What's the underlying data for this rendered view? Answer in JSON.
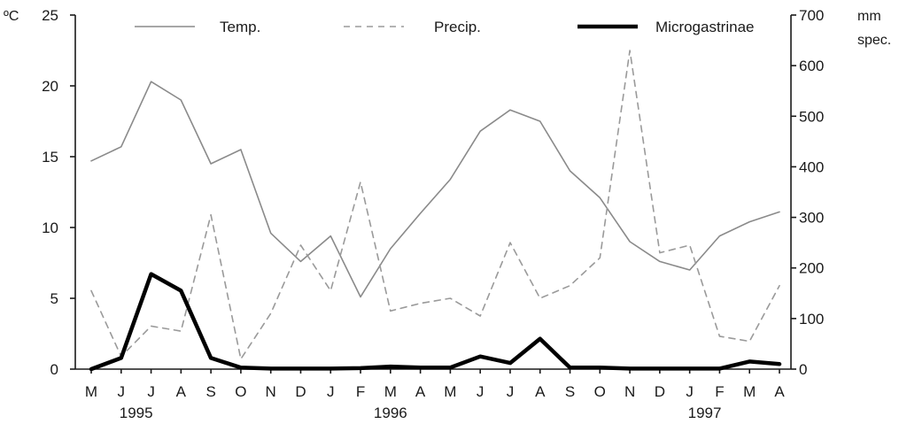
{
  "chart_data": {
    "type": "line",
    "left_unit": "ºC",
    "right_unit_1": "mm",
    "right_unit_2": "spec.",
    "categories": [
      "M",
      "J",
      "J",
      "A",
      "S",
      "O",
      "N",
      "D",
      "J",
      "F",
      "M",
      "A",
      "M",
      "J",
      "J",
      "A",
      "S",
      "O",
      "N",
      "D",
      "J",
      "F",
      "M",
      "A"
    ],
    "year_labels": [
      {
        "text": "1995",
        "index": 1.5
      },
      {
        "text": "1996",
        "index": 10
      },
      {
        "text": "1997",
        "index": 20.5
      }
    ],
    "y_left": {
      "min": 0,
      "max": 25,
      "ticks": [
        0,
        5,
        10,
        15,
        20,
        25
      ]
    },
    "y_right": {
      "min": 0,
      "max": 700,
      "ticks": [
        0,
        100,
        200,
        300,
        400,
        500,
        600,
        700
      ]
    },
    "grid": false,
    "legend_position": "top",
    "series": [
      {
        "name": "Temp.",
        "axis": "left",
        "style": "solid-thin",
        "color": "#8a8a8a",
        "values": [
          14.7,
          15.7,
          20.3,
          19.0,
          14.5,
          15.5,
          9.6,
          7.6,
          9.4,
          5.1,
          8.5,
          11.0,
          13.4,
          16.8,
          18.3,
          17.5,
          14.0,
          12.1,
          9.0,
          7.6,
          7.0,
          9.4,
          10.4,
          11.1
        ]
      },
      {
        "name": "Precip.",
        "axis": "right",
        "style": "dashed",
        "color": "#9a9a9a",
        "values": [
          155,
          25,
          85,
          75,
          305,
          20,
          110,
          245,
          155,
          370,
          115,
          130,
          140,
          105,
          250,
          140,
          165,
          220,
          630,
          230,
          245,
          65,
          55,
          165
        ]
      },
      {
        "name": "Microgastrinae",
        "axis": "right",
        "style": "solid-thick",
        "color": "#000000",
        "values": [
          0,
          22,
          188,
          155,
          22,
          3,
          1,
          1,
          1,
          2,
          5,
          3,
          3,
          25,
          12,
          60,
          3,
          3,
          1,
          1,
          1,
          1,
          15,
          10
        ]
      }
    ]
  }
}
